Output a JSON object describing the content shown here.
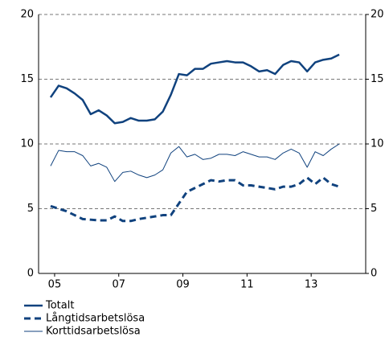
{
  "chart_data": {
    "type": "line",
    "x": [
      2005.375,
      2005.625,
      2005.875,
      2006.125,
      2006.375,
      2006.625,
      2006.875,
      2007.125,
      2007.375,
      2007.625,
      2007.875,
      2008.125,
      2008.375,
      2008.625,
      2008.875,
      2009.125,
      2009.375,
      2009.625,
      2009.875,
      2010.125,
      2010.375,
      2010.625,
      2010.875,
      2011.125,
      2011.375,
      2011.625,
      2011.875,
      2012.125,
      2012.375,
      2012.625,
      2012.875,
      2013.125,
      2013.375,
      2013.625,
      2013.875,
      2014.125,
      2014.375
    ],
    "series": [
      {
        "name": "Totalt",
        "color": "#10427e",
        "dash": "solid",
        "width": 2.5,
        "values": [
          13.6,
          14.5,
          14.3,
          13.9,
          13.4,
          12.3,
          12.6,
          12.2,
          11.6,
          11.7,
          12.0,
          11.8,
          11.8,
          11.9,
          12.5,
          13.8,
          15.4,
          15.3,
          15.8,
          15.8,
          16.2,
          16.3,
          16.4,
          16.3,
          16.3,
          16.0,
          15.6,
          15.7,
          15.4,
          16.1,
          16.4,
          16.3,
          15.6,
          16.3,
          16.5,
          16.6,
          16.9
        ]
      },
      {
        "name": "Långtidsarbetslösa",
        "color": "#10427e",
        "dash": "dashed",
        "width": 3,
        "values": [
          5.2,
          5.0,
          4.8,
          4.5,
          4.2,
          4.15,
          4.1,
          4.1,
          4.4,
          4.05,
          4.05,
          4.2,
          4.3,
          4.4,
          4.5,
          4.5,
          5.4,
          6.3,
          6.6,
          6.9,
          7.2,
          7.1,
          7.2,
          7.2,
          6.8,
          6.8,
          6.7,
          6.6,
          6.5,
          6.7,
          6.7,
          6.9,
          7.4,
          6.9,
          7.4,
          6.9,
          6.7
        ]
      },
      {
        "name": "Korttidsarbetslösa",
        "color": "#10427e",
        "dash": "solid",
        "width": 1,
        "values": [
          8.3,
          9.5,
          9.4,
          9.4,
          9.1,
          8.3,
          8.5,
          8.2,
          7.1,
          7.8,
          7.9,
          7.6,
          7.4,
          7.6,
          8.0,
          9.3,
          9.8,
          9.0,
          9.2,
          8.8,
          8.9,
          9.2,
          9.2,
          9.1,
          9.4,
          9.2,
          9.0,
          9.0,
          8.8,
          9.3,
          9.6,
          9.3,
          8.2,
          9.4,
          9.1,
          9.6,
          10.0
        ]
      }
    ],
    "xlim": [
      2005,
      2015.2
    ],
    "xticks": [
      {
        "value": 2005.5,
        "label": "05"
      },
      {
        "value": 2007.5,
        "label": "07"
      },
      {
        "value": 2009.5,
        "label": "09"
      },
      {
        "value": 2011.5,
        "label": "11"
      },
      {
        "value": 2013.5,
        "label": "13"
      }
    ],
    "ylim": [
      0,
      20
    ],
    "yticks": [
      0,
      5,
      10,
      15,
      20
    ],
    "y2lim": [
      0,
      20
    ],
    "y2ticks": [
      0,
      5,
      10,
      15,
      20
    ],
    "grid": true,
    "legend": "bottom-left"
  }
}
